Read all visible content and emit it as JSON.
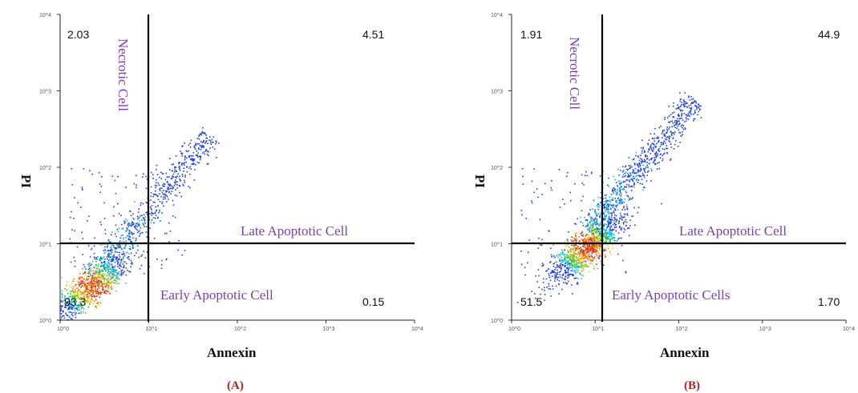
{
  "chart_data": [
    {
      "type": "scatter",
      "panel_label": "(A)",
      "xlabel": "Annexin",
      "ylabel": "PI",
      "quadrant_values": {
        "upper_left": "2.03",
        "upper_right": "4.51",
        "lower_left": "93.3",
        "lower_right": "0.15"
      },
      "region_labels": {
        "necrotic": "Necrotic Cell",
        "late": "Late Apoptotic Cell",
        "early": "Early Apoptotic Cell"
      },
      "gate": {
        "x": 1,
        "y": 1
      },
      "xlim": [
        0,
        4
      ],
      "ylim": [
        0,
        4
      ],
      "scale": "log",
      "density_peak": [
        0.35,
        0.45
      ],
      "diagonal_extent": [
        1.7,
        2.6
      ],
      "x_ticks": [
        "10^0",
        "10^1",
        "10^2",
        "10^3",
        "10^4"
      ],
      "y_ticks": [
        "10^0",
        "10^1",
        "10^2",
        "10^3",
        "10^4"
      ]
    },
    {
      "type": "scatter",
      "panel_label": "(B)",
      "xlabel": "Annexin",
      "ylabel": "PI",
      "quadrant_values": {
        "upper_left": "1.91",
        "upper_right": "44.9",
        "lower_left": "51.5",
        "lower_right": "1.70"
      },
      "region_labels": {
        "necrotic": "Necrotic Cell",
        "late": "Late Apoptotic Cell",
        "early": "Early Apoptotic Cells"
      },
      "gate": {
        "x": 1,
        "y": 1
      },
      "xlim": [
        0,
        4
      ],
      "ylim": [
        0,
        4
      ],
      "scale": "log",
      "density_peak": [
        0.9,
        0.95
      ],
      "diagonal_extent": [
        2.2,
        3.1
      ],
      "x_ticks": [
        "10^0",
        "10^1",
        "10^2",
        "10^3",
        "10^4"
      ],
      "y_ticks": [
        "10^0",
        "10^1",
        "10^2",
        "10^3",
        "10^4"
      ]
    }
  ]
}
